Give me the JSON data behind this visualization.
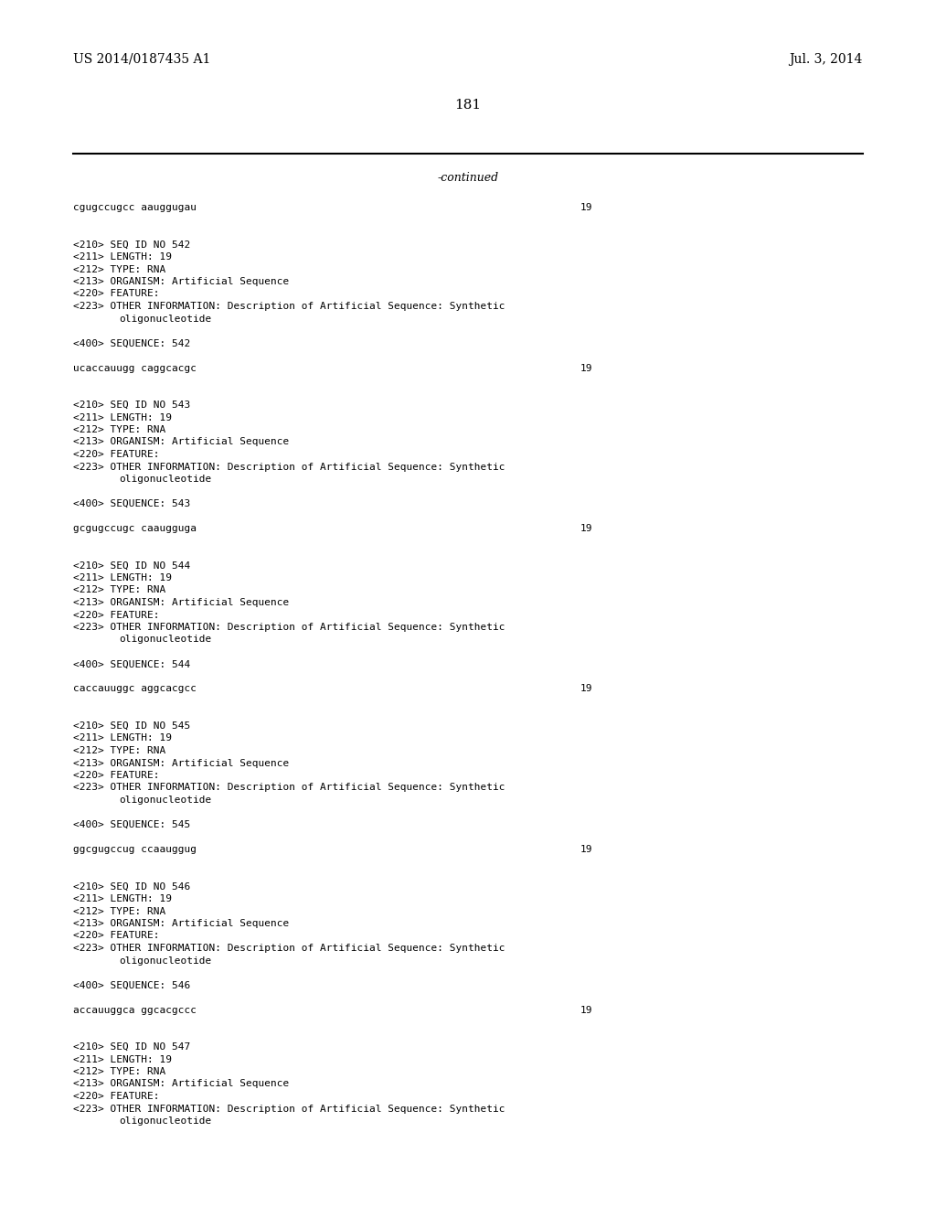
{
  "background_color": "#ffffff",
  "header_left": "US 2014/0187435 A1",
  "header_right": "Jul. 3, 2014",
  "page_number": "181",
  "continued_label": "-continued",
  "font_size_header": 10.0,
  "font_size_body": 8.0,
  "font_size_page": 11.0,
  "font_size_continued": 9.0,
  "content_lines": [
    {
      "type": "seq_line",
      "text": "cgugccugcc aauggugau",
      "number": "19"
    },
    {
      "type": "blank"
    },
    {
      "type": "blank"
    },
    {
      "type": "meta",
      "text": "<210> SEQ ID NO 542"
    },
    {
      "type": "meta",
      "text": "<211> LENGTH: 19"
    },
    {
      "type": "meta",
      "text": "<212> TYPE: RNA"
    },
    {
      "type": "meta",
      "text": "<213> ORGANISM: Artificial Sequence"
    },
    {
      "type": "meta",
      "text": "<220> FEATURE:"
    },
    {
      "type": "meta",
      "text": "<223> OTHER INFORMATION: Description of Artificial Sequence: Synthetic"
    },
    {
      "type": "meta_indent",
      "text": "oligonucleotide"
    },
    {
      "type": "blank"
    },
    {
      "type": "meta",
      "text": "<400> SEQUENCE: 542"
    },
    {
      "type": "blank"
    },
    {
      "type": "seq_line",
      "text": "ucaccauugg caggcacgc",
      "number": "19"
    },
    {
      "type": "blank"
    },
    {
      "type": "blank"
    },
    {
      "type": "meta",
      "text": "<210> SEQ ID NO 543"
    },
    {
      "type": "meta",
      "text": "<211> LENGTH: 19"
    },
    {
      "type": "meta",
      "text": "<212> TYPE: RNA"
    },
    {
      "type": "meta",
      "text": "<213> ORGANISM: Artificial Sequence"
    },
    {
      "type": "meta",
      "text": "<220> FEATURE:"
    },
    {
      "type": "meta",
      "text": "<223> OTHER INFORMATION: Description of Artificial Sequence: Synthetic"
    },
    {
      "type": "meta_indent",
      "text": "oligonucleotide"
    },
    {
      "type": "blank"
    },
    {
      "type": "meta",
      "text": "<400> SEQUENCE: 543"
    },
    {
      "type": "blank"
    },
    {
      "type": "seq_line",
      "text": "gcgugccugc caaugguga",
      "number": "19"
    },
    {
      "type": "blank"
    },
    {
      "type": "blank"
    },
    {
      "type": "meta",
      "text": "<210> SEQ ID NO 544"
    },
    {
      "type": "meta",
      "text": "<211> LENGTH: 19"
    },
    {
      "type": "meta",
      "text": "<212> TYPE: RNA"
    },
    {
      "type": "meta",
      "text": "<213> ORGANISM: Artificial Sequence"
    },
    {
      "type": "meta",
      "text": "<220> FEATURE:"
    },
    {
      "type": "meta",
      "text": "<223> OTHER INFORMATION: Description of Artificial Sequence: Synthetic"
    },
    {
      "type": "meta_indent",
      "text": "oligonucleotide"
    },
    {
      "type": "blank"
    },
    {
      "type": "meta",
      "text": "<400> SEQUENCE: 544"
    },
    {
      "type": "blank"
    },
    {
      "type": "seq_line",
      "text": "caccauuggc aggcacgcc",
      "number": "19"
    },
    {
      "type": "blank"
    },
    {
      "type": "blank"
    },
    {
      "type": "meta",
      "text": "<210> SEQ ID NO 545"
    },
    {
      "type": "meta",
      "text": "<211> LENGTH: 19"
    },
    {
      "type": "meta",
      "text": "<212> TYPE: RNA"
    },
    {
      "type": "meta",
      "text": "<213> ORGANISM: Artificial Sequence"
    },
    {
      "type": "meta",
      "text": "<220> FEATURE:"
    },
    {
      "type": "meta",
      "text": "<223> OTHER INFORMATION: Description of Artificial Sequence: Synthetic"
    },
    {
      "type": "meta_indent",
      "text": "oligonucleotide"
    },
    {
      "type": "blank"
    },
    {
      "type": "meta",
      "text": "<400> SEQUENCE: 545"
    },
    {
      "type": "blank"
    },
    {
      "type": "seq_line",
      "text": "ggcgugccug ccaauggug",
      "number": "19"
    },
    {
      "type": "blank"
    },
    {
      "type": "blank"
    },
    {
      "type": "meta",
      "text": "<210> SEQ ID NO 546"
    },
    {
      "type": "meta",
      "text": "<211> LENGTH: 19"
    },
    {
      "type": "meta",
      "text": "<212> TYPE: RNA"
    },
    {
      "type": "meta",
      "text": "<213> ORGANISM: Artificial Sequence"
    },
    {
      "type": "meta",
      "text": "<220> FEATURE:"
    },
    {
      "type": "meta",
      "text": "<223> OTHER INFORMATION: Description of Artificial Sequence: Synthetic"
    },
    {
      "type": "meta_indent",
      "text": "oligonucleotide"
    },
    {
      "type": "blank"
    },
    {
      "type": "meta",
      "text": "<400> SEQUENCE: 546"
    },
    {
      "type": "blank"
    },
    {
      "type": "seq_line",
      "text": "accauuggca ggcacgccc",
      "number": "19"
    },
    {
      "type": "blank"
    },
    {
      "type": "blank"
    },
    {
      "type": "meta",
      "text": "<210> SEQ ID NO 547"
    },
    {
      "type": "meta",
      "text": "<211> LENGTH: 19"
    },
    {
      "type": "meta",
      "text": "<212> TYPE: RNA"
    },
    {
      "type": "meta",
      "text": "<213> ORGANISM: Artificial Sequence"
    },
    {
      "type": "meta",
      "text": "<220> FEATURE:"
    },
    {
      "type": "meta",
      "text": "<223> OTHER INFORMATION: Description of Artificial Sequence: Synthetic"
    },
    {
      "type": "meta_indent",
      "text": "oligonucleotide"
    }
  ]
}
